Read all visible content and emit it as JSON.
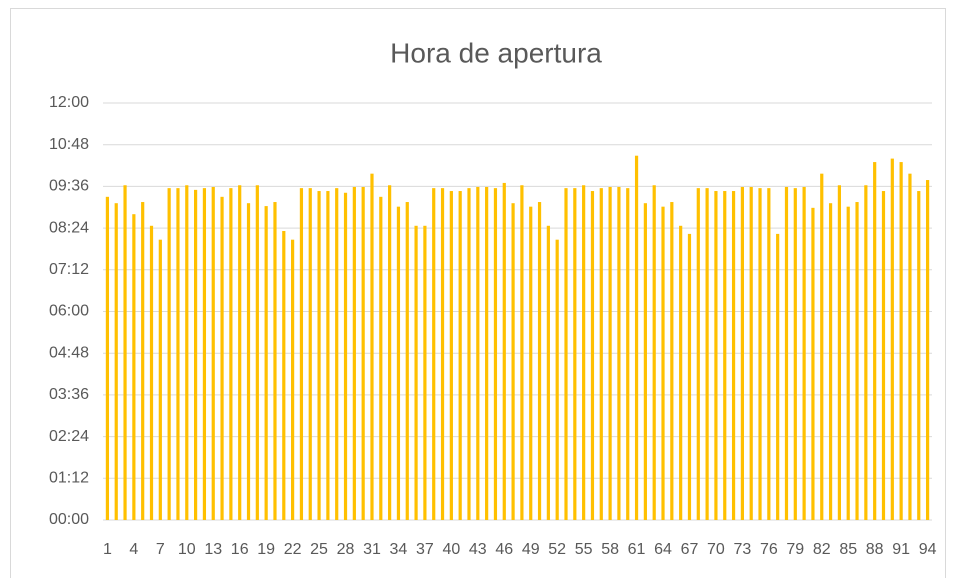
{
  "chart_data": {
    "type": "bar",
    "title": "Hora de apertura",
    "categories": [
      "1",
      null,
      null,
      "4",
      null,
      null,
      "7",
      null,
      null,
      "10",
      null,
      null,
      "13",
      null,
      null,
      "16",
      null,
      null,
      "19",
      null,
      null,
      "22",
      null,
      null,
      "25",
      null,
      null,
      "28",
      null,
      null,
      "31",
      null,
      null,
      "34",
      null,
      null,
      "37",
      null,
      null,
      "40",
      null,
      null,
      "43",
      null,
      null,
      "46",
      null,
      null,
      "49",
      null,
      null,
      "52",
      null,
      null,
      "55",
      null,
      null,
      "58",
      null,
      null,
      "61",
      null,
      null,
      "64",
      null,
      null,
      "67",
      null,
      null,
      "70",
      null,
      null,
      "73",
      null,
      null,
      "76",
      null,
      null,
      "79",
      null,
      null,
      "82",
      null,
      null,
      "85",
      null,
      null,
      "88",
      null,
      null,
      "91",
      null,
      null,
      "94"
    ],
    "values": [
      558,
      547,
      578,
      528,
      549,
      508,
      484,
      573,
      573,
      578,
      570,
      573,
      575,
      558,
      573,
      578,
      547,
      578,
      542,
      549,
      499,
      484,
      573,
      573,
      568,
      568,
      573,
      565,
      575,
      575,
      598,
      558,
      578,
      541,
      549,
      508,
      508,
      573,
      573,
      568,
      568,
      573,
      575,
      575,
      573,
      582,
      547,
      578,
      541,
      549,
      508,
      484,
      573,
      573,
      578,
      568,
      573,
      575,
      575,
      573,
      629,
      547,
      578,
      541,
      549,
      508,
      494,
      573,
      573,
      568,
      568,
      568,
      575,
      575,
      573,
      573,
      494,
      575,
      573,
      575,
      539,
      598,
      547,
      578,
      541,
      549,
      578,
      618,
      568,
      624,
      618,
      598,
      568,
      587
    ],
    "color": "#ffc000",
    "ylim": [
      0,
      720
    ],
    "yticks": [
      {
        "value": 0,
        "label": "00:00"
      },
      {
        "value": 72,
        "label": "01:12"
      },
      {
        "value": 144,
        "label": "02:24"
      },
      {
        "value": 216,
        "label": "03:36"
      },
      {
        "value": 288,
        "label": "04:48"
      },
      {
        "value": 360,
        "label": "06:00"
      },
      {
        "value": 432,
        "label": "07:12"
      },
      {
        "value": 504,
        "label": "08:24"
      },
      {
        "value": 576,
        "label": "09:36"
      },
      {
        "value": 648,
        "label": "10:48"
      },
      {
        "value": 720,
        "label": "12:00"
      }
    ],
    "grid": true
  }
}
